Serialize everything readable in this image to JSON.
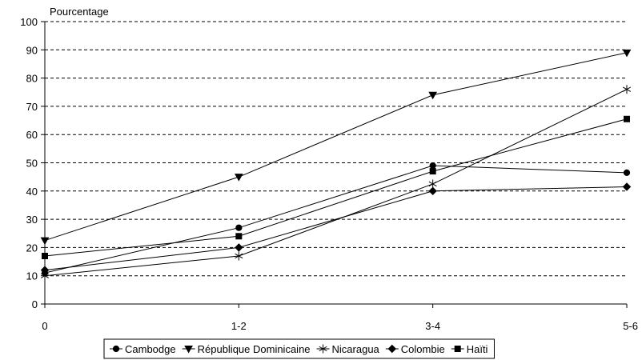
{
  "chart_data": {
    "type": "line",
    "title": "",
    "xlabel": "",
    "ylabel": "Pourcentage",
    "x": [
      "0",
      "1-2",
      "3-4",
      "5-6"
    ],
    "ylim": [
      0,
      100
    ],
    "yticks": [
      0,
      10,
      20,
      30,
      40,
      50,
      60,
      70,
      80,
      90,
      100
    ],
    "grid": "horizontal-dashed",
    "legend_position": "bottom",
    "series": [
      {
        "name": "Cambodge",
        "marker": "circle",
        "values": [
          11,
          27,
          49,
          46.5
        ]
      },
      {
        "name": "République Dominicaine",
        "marker": "triangle-down",
        "values": [
          22.5,
          45,
          74,
          89
        ]
      },
      {
        "name": "Nicaragua",
        "marker": "star",
        "values": [
          10,
          17,
          42.5,
          76
        ]
      },
      {
        "name": "Colombie",
        "marker": "diamond",
        "values": [
          12,
          20,
          40,
          41.5
        ]
      },
      {
        "name": "Haïti",
        "marker": "square",
        "values": [
          17,
          24,
          47,
          65.5
        ]
      }
    ]
  }
}
